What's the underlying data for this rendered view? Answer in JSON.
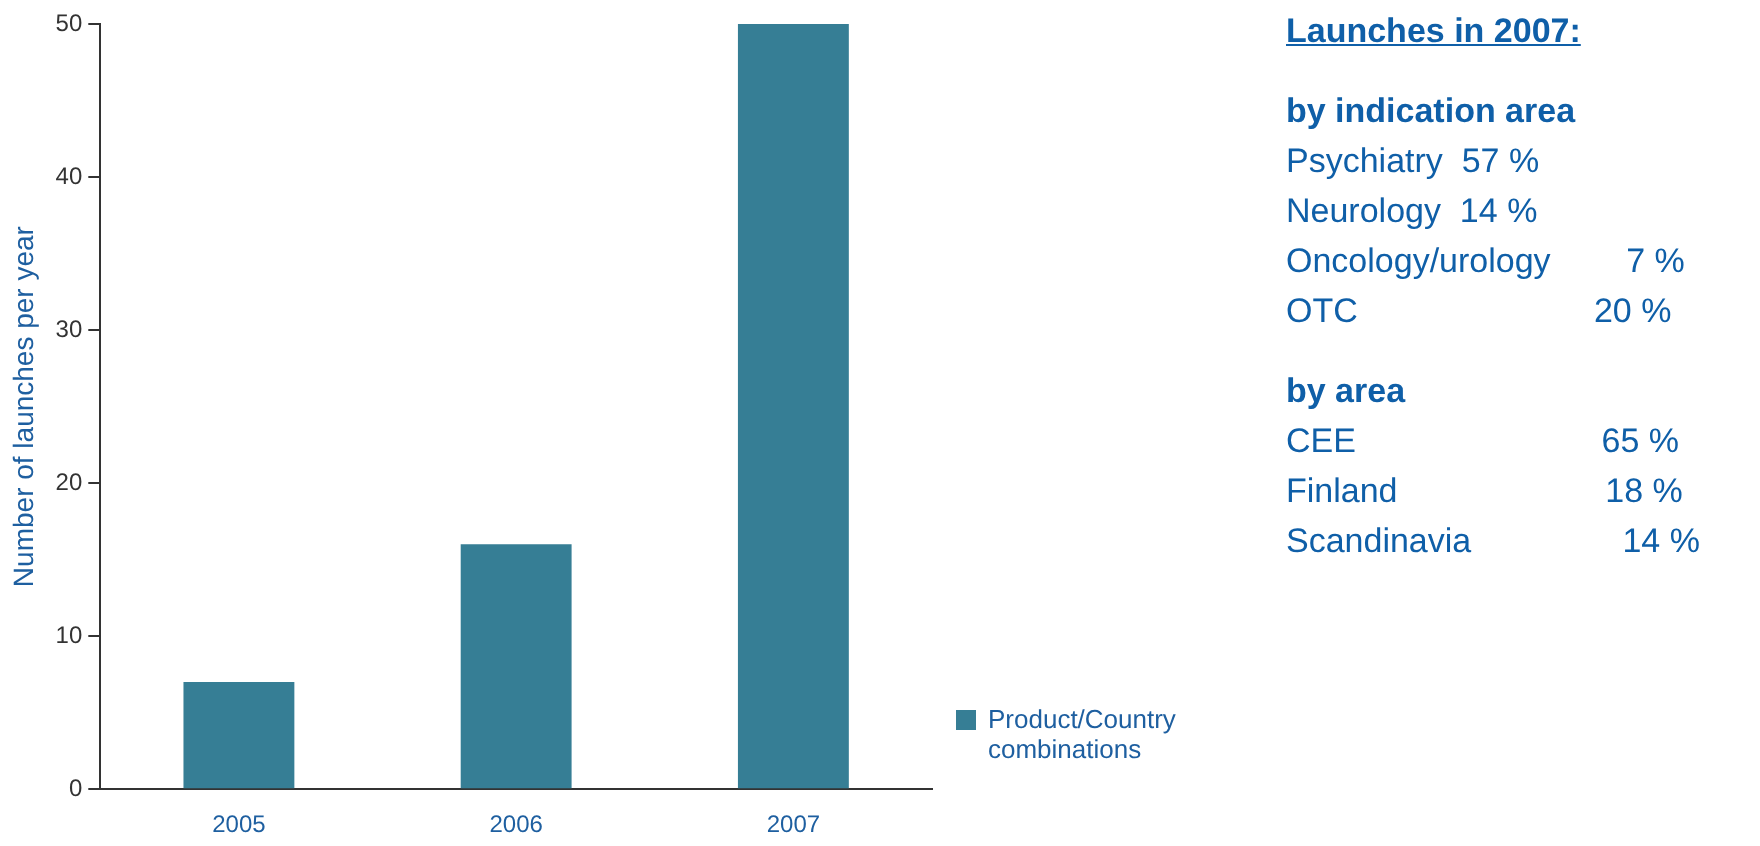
{
  "chart_data": {
    "type": "bar",
    "ylabel": "Number of launches per year",
    "categories": [
      "2005",
      "2006",
      "2007"
    ],
    "series": [
      {
        "name": "Product/Country combinations",
        "color": "#367e95",
        "values": [
          7,
          16,
          50
        ]
      }
    ],
    "ylim": [
      0,
      50
    ],
    "yticks": [
      0,
      10,
      20,
      30,
      40,
      50
    ],
    "grid": false,
    "legend": "bottom right",
    "annotations": [
      "Launches in 2007:",
      "by indication area",
      "Psychiatry  57 %",
      "Neurology  14 %",
      "Oncology/urology        7 %",
      "OTC                         20 %",
      "by area",
      "CEE                          65 %",
      "Finland                      18 %",
      "Scandinavia                14 %"
    ]
  }
}
